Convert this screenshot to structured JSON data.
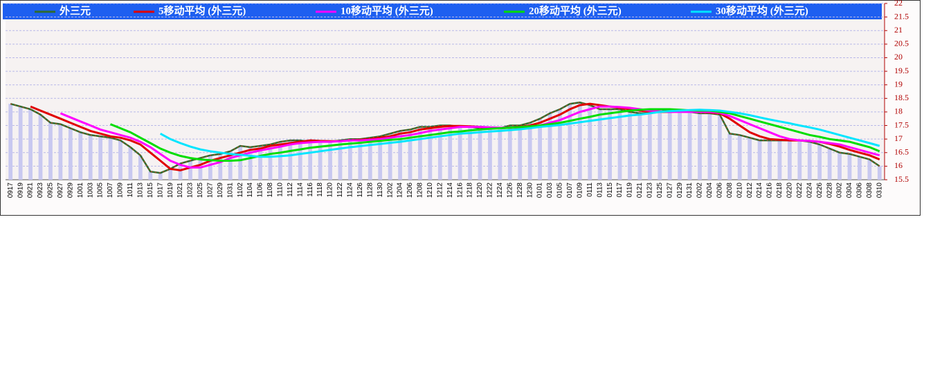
{
  "chart_data": {
    "type": "line",
    "categories": [
      "0917",
      "0919",
      "0921",
      "0923",
      "0925",
      "0927",
      "0929",
      "1001",
      "1003",
      "1005",
      "1007",
      "1009",
      "1011",
      "1013",
      "1015",
      "1017",
      "1019",
      "1021",
      "1023",
      "1025",
      "1027",
      "1029",
      "1031",
      "1102",
      "1104",
      "1106",
      "1108",
      "1110",
      "1112",
      "1114",
      "1116",
      "1118",
      "1120",
      "1122",
      "1124",
      "1126",
      "1128",
      "1130",
      "1202",
      "1204",
      "1206",
      "1208",
      "1210",
      "1212",
      "1214",
      "1216",
      "1218",
      "1220",
      "1222",
      "1224",
      "1226",
      "1228",
      "1230",
      "0101",
      "0103",
      "0105",
      "0107",
      "0109",
      "0111",
      "0113",
      "0115",
      "0117",
      "0119",
      "0121",
      "0123",
      "0125",
      "0127",
      "0129",
      "0131",
      "0202",
      "0204",
      "0206",
      "0208",
      "0210",
      "0212",
      "0214",
      "0216",
      "0218",
      "0220",
      "0222",
      "0224",
      "0226",
      "0228",
      "0302",
      "0304",
      "0306",
      "0308",
      "0310"
    ],
    "series": [
      {
        "name": "外三元",
        "color": "#2e6b2e",
        "values": [
          18.3,
          18.2,
          18.1,
          17.9,
          17.6,
          17.55,
          17.4,
          17.25,
          17.15,
          17.1,
          17.05,
          16.95,
          16.7,
          16.4,
          15.8,
          15.75,
          15.9,
          16.1,
          16.2,
          16.3,
          16.4,
          16.45,
          16.55,
          16.75,
          16.7,
          16.75,
          16.8,
          16.9,
          16.95,
          16.95,
          16.9,
          16.9,
          16.9,
          16.95,
          17,
          17,
          17.05,
          17.1,
          17.2,
          17.3,
          17.35,
          17.45,
          17.45,
          17.5,
          17.5,
          17.45,
          17.45,
          17.4,
          17.4,
          17.4,
          17.5,
          17.5,
          17.6,
          17.75,
          17.95,
          18.1,
          18.3,
          18.35,
          18.25,
          18.1,
          18.1,
          18.1,
          18,
          17.95,
          17.95,
          18,
          18.1,
          18.05,
          18,
          17.95,
          17.95,
          17.9,
          17.2,
          17.15,
          17.05,
          16.95,
          16.95,
          16.95,
          16.95,
          16.95,
          16.9,
          16.8,
          16.65,
          16.5,
          16.45,
          16.35,
          16.25,
          16
        ]
      },
      {
        "name": "5移动平均 (外三元)",
        "color": "#e00000",
        "values": [
          null,
          null,
          18.2,
          18.05,
          17.9,
          17.75,
          17.6,
          17.45,
          17.3,
          17.2,
          17.1,
          17.05,
          16.95,
          16.8,
          16.5,
          16.2,
          15.9,
          15.85,
          15.95,
          16.05,
          16.2,
          16.3,
          16.4,
          16.5,
          16.6,
          16.65,
          16.75,
          16.8,
          16.85,
          16.9,
          16.95,
          16.93,
          16.92,
          16.92,
          16.95,
          16.97,
          17,
          17.05,
          17.1,
          17.2,
          17.25,
          17.35,
          17.4,
          17.45,
          17.48,
          17.48,
          17.47,
          17.45,
          17.42,
          17.4,
          17.42,
          17.45,
          17.5,
          17.6,
          17.75,
          17.9,
          18.1,
          18.25,
          18.3,
          18.25,
          18.2,
          18.15,
          18.1,
          18.05,
          18,
          18,
          18,
          18.02,
          18.03,
          18,
          17.98,
          17.95,
          17.75,
          17.5,
          17.25,
          17.1,
          17,
          16.97,
          16.95,
          16.95,
          16.93,
          16.9,
          16.82,
          16.72,
          16.6,
          16.5,
          16.4,
          16.25
        ]
      },
      {
        "name": "10移动平均 (外三元)",
        "color": "#ff00ff",
        "values": [
          null,
          null,
          null,
          null,
          null,
          17.95,
          17.8,
          17.65,
          17.5,
          17.35,
          17.25,
          17.15,
          17.05,
          16.9,
          16.7,
          16.45,
          16.2,
          16.05,
          15.95,
          15.95,
          16.05,
          16.15,
          16.3,
          16.4,
          16.5,
          16.58,
          16.65,
          16.72,
          16.8,
          16.85,
          16.88,
          16.9,
          16.9,
          16.92,
          16.95,
          16.95,
          16.97,
          17,
          17.05,
          17.1,
          17.15,
          17.22,
          17.3,
          17.35,
          17.4,
          17.45,
          17.45,
          17.45,
          17.43,
          17.42,
          17.42,
          17.43,
          17.45,
          17.5,
          17.6,
          17.7,
          17.85,
          18,
          18.1,
          18.2,
          18.2,
          18.18,
          18.15,
          18.1,
          18.05,
          18.02,
          18,
          18,
          18,
          18,
          18,
          17.97,
          17.85,
          17.7,
          17.55,
          17.4,
          17.25,
          17.1,
          17,
          16.95,
          16.93,
          16.9,
          16.85,
          16.8,
          16.7,
          16.6,
          16.5,
          16.4
        ]
      },
      {
        "name": "20移动平均 (外三元)",
        "color": "#00dd00",
        "values": [
          null,
          null,
          null,
          null,
          null,
          null,
          null,
          null,
          null,
          null,
          17.55,
          17.4,
          17.25,
          17.05,
          16.85,
          16.65,
          16.5,
          16.38,
          16.3,
          16.25,
          16.22,
          16.2,
          16.2,
          16.22,
          16.3,
          16.38,
          16.45,
          16.5,
          16.56,
          16.62,
          16.68,
          16.72,
          16.76,
          16.8,
          16.83,
          16.86,
          16.9,
          16.93,
          16.97,
          17,
          17.05,
          17.1,
          17.15,
          17.2,
          17.25,
          17.28,
          17.32,
          17.35,
          17.38,
          17.4,
          17.42,
          17.44,
          17.47,
          17.5,
          17.55,
          17.6,
          17.67,
          17.75,
          17.82,
          17.9,
          17.95,
          18,
          18.05,
          18.08,
          18.1,
          18.1,
          18.1,
          18.08,
          18.06,
          18.05,
          18.05,
          18,
          17.95,
          17.85,
          17.75,
          17.65,
          17.55,
          17.45,
          17.35,
          17.25,
          17.15,
          17.08,
          17,
          16.95,
          16.9,
          16.8,
          16.7,
          16.55
        ]
      },
      {
        "name": "30移动平均 (外三元)",
        "color": "#00e5ff",
        "values": [
          null,
          null,
          null,
          null,
          null,
          null,
          null,
          null,
          null,
          null,
          null,
          null,
          null,
          null,
          null,
          17.2,
          17,
          16.85,
          16.72,
          16.62,
          16.55,
          16.5,
          16.45,
          16.42,
          16.38,
          16.35,
          16.35,
          16.37,
          16.4,
          16.45,
          16.5,
          16.55,
          16.6,
          16.65,
          16.7,
          16.74,
          16.78,
          16.82,
          16.86,
          16.9,
          16.95,
          17,
          17.05,
          17.1,
          17.15,
          17.2,
          17.22,
          17.25,
          17.28,
          17.3,
          17.33,
          17.36,
          17.4,
          17.45,
          17.48,
          17.52,
          17.57,
          17.62,
          17.67,
          17.72,
          17.77,
          17.82,
          17.87,
          17.9,
          17.95,
          18,
          18.03,
          18.05,
          18.07,
          18.08,
          18.07,
          18.05,
          18,
          17.95,
          17.88,
          17.8,
          17.72,
          17.65,
          17.58,
          17.5,
          17.43,
          17.35,
          17.25,
          17.15,
          17.05,
          16.95,
          16.85,
          16.75
        ]
      }
    ],
    "bar_color": "#c8c8f0",
    "ylim": [
      15.5,
      22
    ],
    "yticks": [
      15.5,
      16,
      16.5,
      17,
      17.5,
      18,
      18.5,
      19,
      19.5,
      20,
      20.5,
      21,
      21.5,
      22
    ],
    "grid": true
  }
}
